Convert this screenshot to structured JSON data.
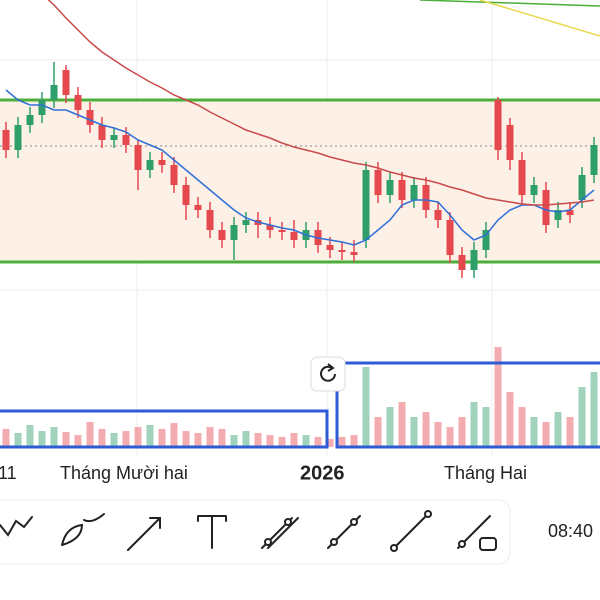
{
  "chart_data": {
    "type": "candlestick",
    "ylim": [
      0,
      300
    ],
    "levels": [
      200,
      38
    ],
    "level_color": "#4caf3a",
    "reference": 154,
    "up_color": "#2e9e6a",
    "down_color": "#e5484d",
    "open": [
      170,
      150,
      175,
      185,
      200,
      230,
      205,
      190,
      175,
      160,
      165,
      155,
      130,
      140,
      135,
      115,
      95,
      90,
      70,
      60,
      75,
      80,
      75,
      70,
      68,
      60,
      70,
      55,
      50,
      48,
      60,
      130,
      105,
      120,
      100,
      115,
      90,
      80,
      45,
      30,
      50,
      200,
      175,
      140,
      105,
      110,
      80,
      90,
      100,
      125
    ],
    "high": [
      178,
      183,
      193,
      208,
      238,
      235,
      213,
      198,
      183,
      173,
      173,
      160,
      148,
      148,
      143,
      123,
      103,
      98,
      78,
      83,
      88,
      88,
      83,
      78,
      80,
      78,
      78,
      63,
      58,
      60,
      138,
      138,
      128,
      128,
      123,
      123,
      98,
      88,
      53,
      58,
      78,
      203,
      182,
      148,
      123,
      118,
      98,
      98,
      133,
      163
    ],
    "low": [
      142,
      142,
      167,
      177,
      192,
      197,
      182,
      167,
      152,
      152,
      147,
      110,
      122,
      127,
      107,
      80,
      82,
      62,
      52,
      40,
      67,
      62,
      62,
      60,
      52,
      52,
      47,
      42,
      40,
      38,
      52,
      97,
      97,
      92,
      92,
      82,
      72,
      37,
      22,
      22,
      42,
      140,
      130,
      95,
      97,
      67,
      72,
      77,
      92,
      117
    ],
    "close": [
      150,
      175,
      185,
      200,
      215,
      205,
      190,
      175,
      160,
      165,
      155,
      130,
      140,
      135,
      115,
      95,
      90,
      70,
      60,
      75,
      80,
      75,
      70,
      68,
      60,
      70,
      55,
      50,
      48,
      45,
      130,
      105,
      120,
      100,
      115,
      90,
      80,
      45,
      30,
      50,
      70,
      150,
      140,
      105,
      115,
      75,
      90,
      85,
      125,
      155
    ],
    "ma_fast": {
      "color": "#2f6fd6",
      "values": [
        210,
        200,
        195,
        195,
        190,
        190,
        185,
        180,
        175,
        172,
        168,
        160,
        155,
        150,
        140,
        130,
        120,
        110,
        100,
        90,
        82,
        78,
        75,
        72,
        70,
        65,
        62,
        60,
        58,
        55,
        60,
        70,
        80,
        95,
        100,
        100,
        98,
        85,
        70,
        60,
        65,
        80,
        90,
        95,
        95,
        90,
        88,
        90,
        100,
        110
      ]
    },
    "ma_slow": {
      "color": "#c94a4a",
      "values": [
        340,
        330,
        318,
        306,
        295,
        282,
        270,
        258,
        248,
        240,
        232,
        225,
        218,
        212,
        205,
        200,
        195,
        188,
        182,
        176,
        170,
        166,
        162,
        157,
        153,
        150,
        147,
        143,
        140,
        137,
        135,
        132,
        128,
        125,
        122,
        120,
        117,
        113,
        110,
        106,
        102,
        100,
        98,
        96,
        95,
        95,
        96,
        97,
        98,
        100
      ]
    },
    "volume": [
      18,
      14,
      22,
      16,
      20,
      15,
      12,
      25,
      18,
      14,
      16,
      20,
      22,
      18,
      24,
      16,
      14,
      20,
      18,
      12,
      16,
      14,
      12,
      10,
      14,
      12,
      10,
      8,
      10,
      12,
      80,
      30,
      40,
      45,
      30,
      35,
      25,
      20,
      30,
      45,
      40,
      100,
      55,
      40,
      30,
      25,
      35,
      30,
      60,
      75
    ],
    "vlim": [
      0,
      100
    ]
  },
  "axis_labels": [
    "11",
    "Tháng Mười hai",
    "2026",
    "Tháng Hai"
  ],
  "toolbar": {
    "clock": "08:40"
  }
}
